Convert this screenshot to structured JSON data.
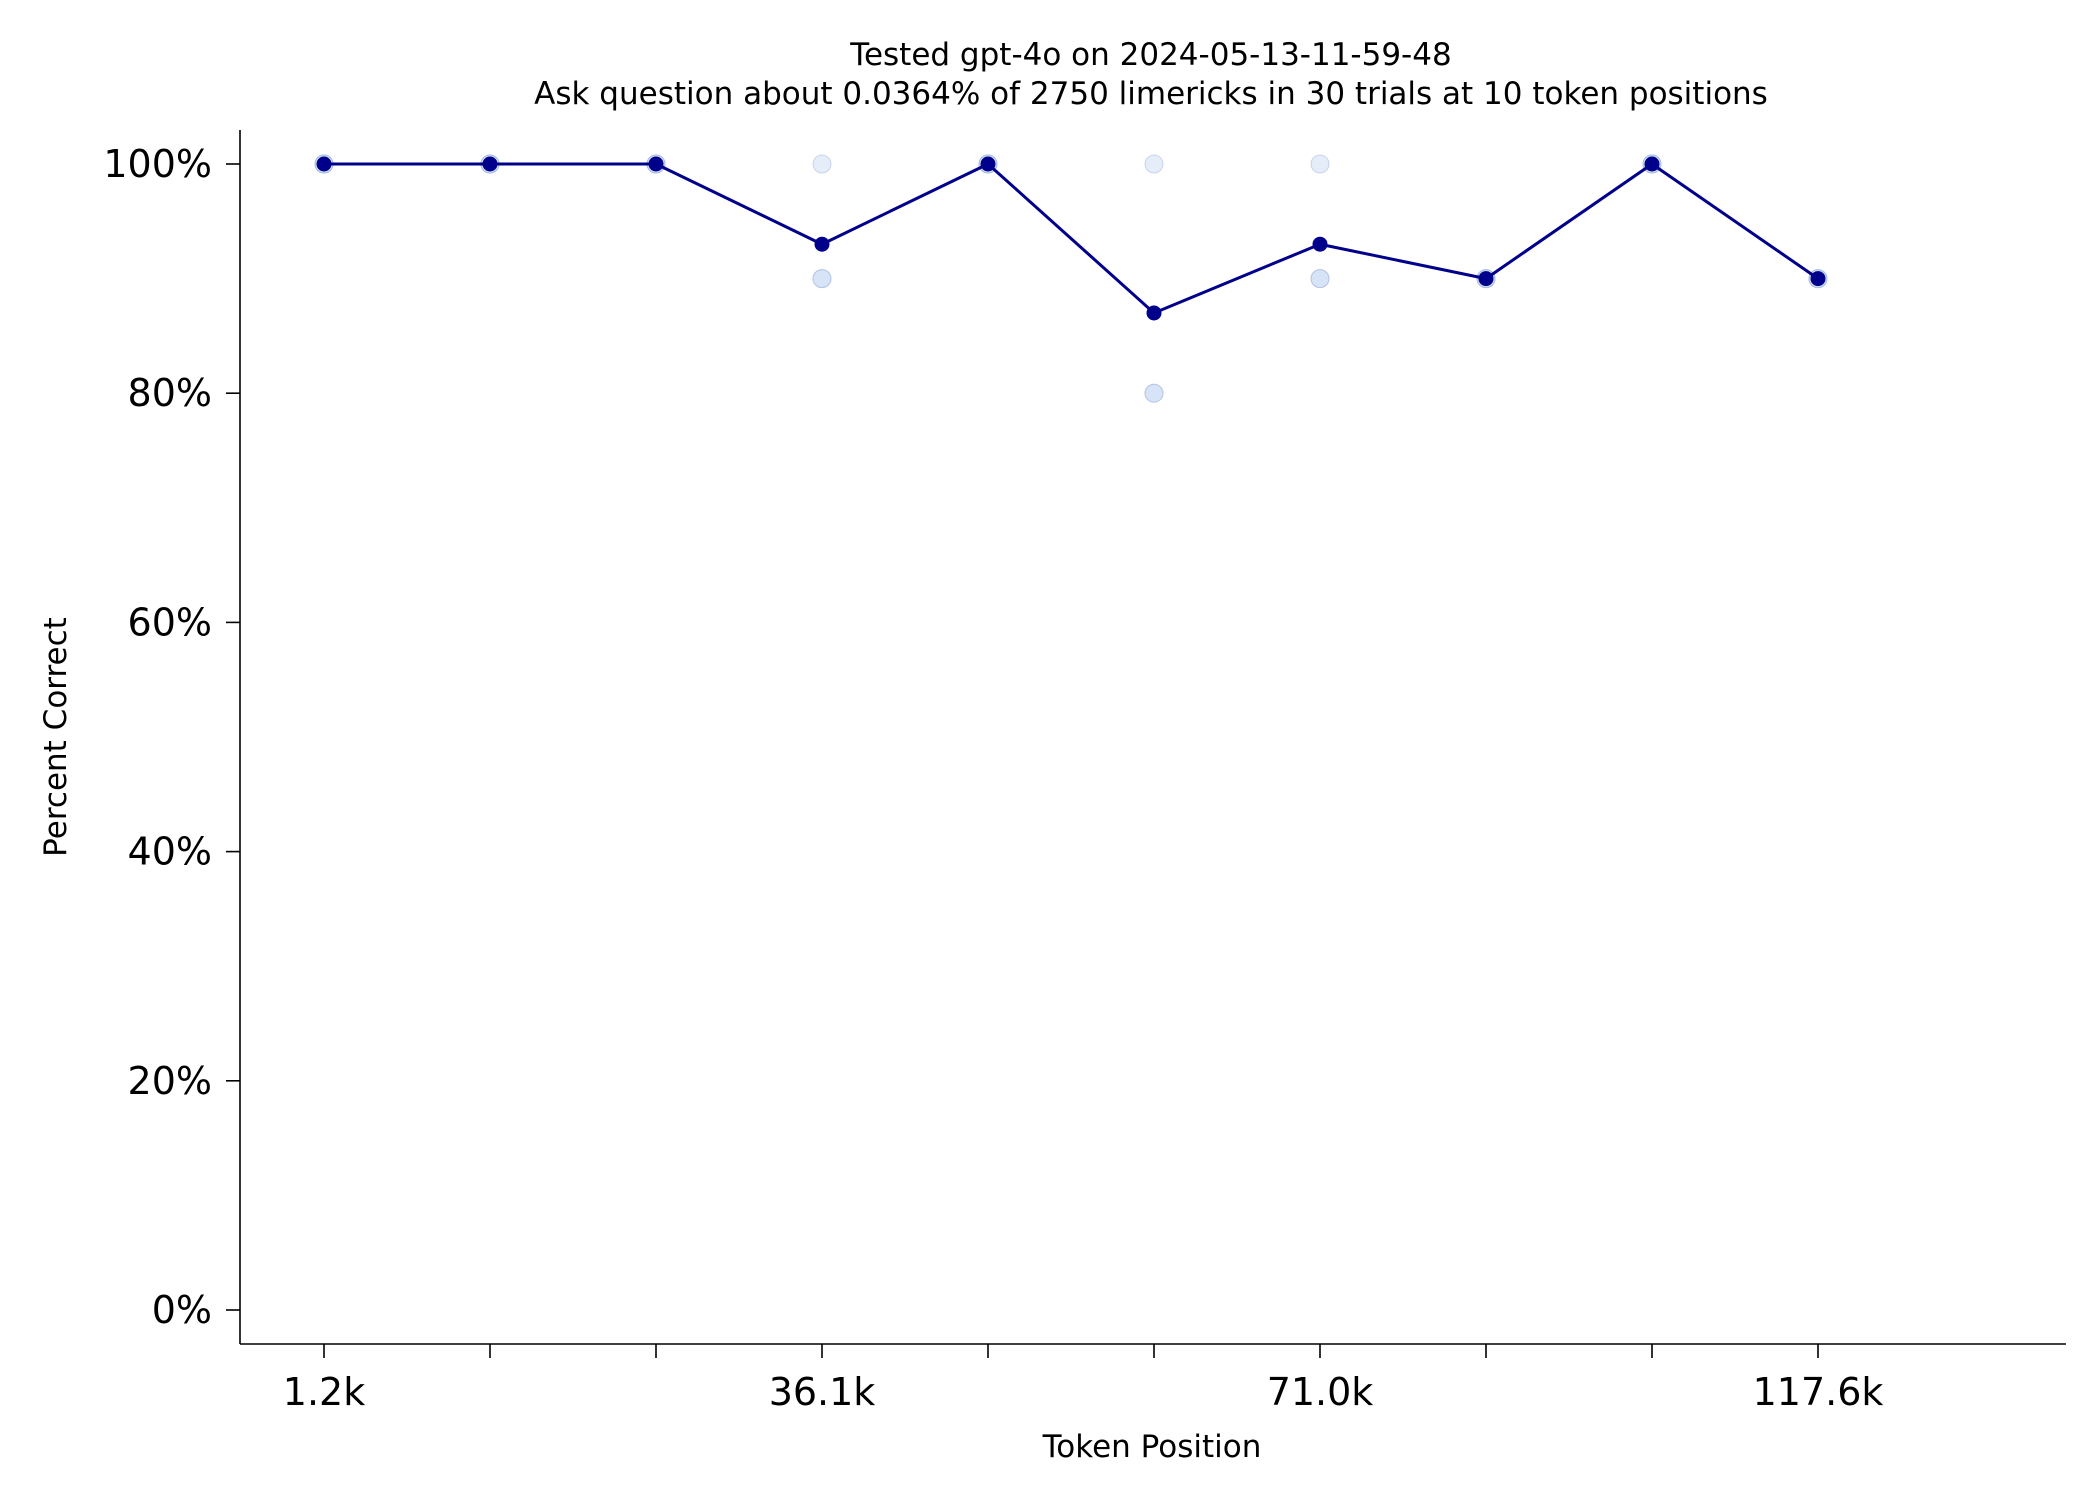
{
  "chart_data": {
    "type": "line",
    "title": "Tested gpt-4o on 2024-05-13-11-59-48",
    "subtitle": "Ask question about 0.0364% of 2750 limericks in 30 trials at 10 token positions",
    "xlabel": "Token Position",
    "ylabel": "Percent Correct",
    "x_positions": [
      1,
      2,
      3,
      4,
      5,
      6,
      7,
      8,
      9,
      10
    ],
    "x_tick_labels": [
      "1.2k",
      "",
      "",
      "36.1k",
      "",
      "",
      "71.0k",
      "",
      "",
      "117.6k"
    ],
    "x_tick_values": [
      1200,
      null,
      null,
      36100,
      null,
      null,
      71000,
      null,
      null,
      117600
    ],
    "ylim": [
      0,
      100
    ],
    "y_ticks": [
      0,
      20,
      40,
      60,
      80,
      100
    ],
    "y_tick_labels": [
      "0%",
      "20%",
      "40%",
      "60%",
      "80%",
      "100%"
    ],
    "grid": false,
    "series": [
      {
        "kind": "mean",
        "values": [
          100,
          100,
          100,
          93,
          100,
          87,
          93,
          90,
          100,
          90
        ]
      }
    ],
    "trial_points": [
      [
        100,
        100,
        100
      ],
      [
        100,
        100,
        100
      ],
      [
        100,
        100,
        100
      ],
      [
        100,
        90,
        90
      ],
      [
        100,
        100,
        100
      ],
      [
        100,
        80,
        80
      ],
      [
        100,
        90,
        90
      ],
      [
        90,
        90,
        90
      ],
      [
        100,
        100,
        100
      ],
      [
        90,
        90,
        90
      ]
    ],
    "colors": {
      "line": "#00008b",
      "marker": "#00008b",
      "trial_point": "#c6d6f2",
      "axis": "#000000"
    }
  }
}
